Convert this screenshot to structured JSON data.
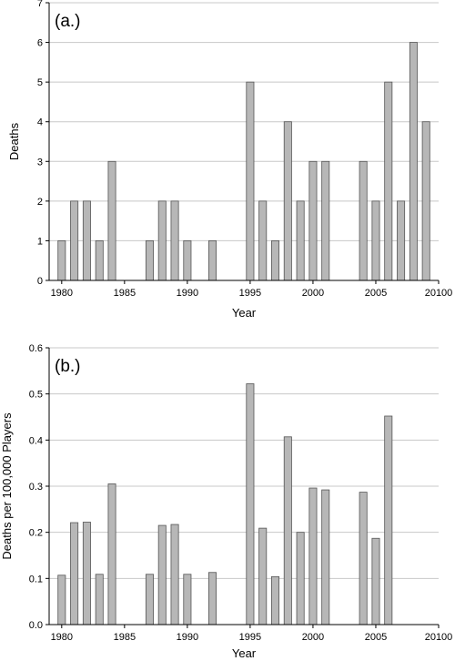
{
  "chart_data": [
    {
      "type": "bar",
      "panel_label": "(a.)",
      "xlabel": "Year",
      "ylabel": "Deaths",
      "xlim": [
        1979,
        2010
      ],
      "ylim": [
        0,
        7
      ],
      "xticks": [
        1980,
        1985,
        1990,
        1995,
        2000,
        2005
      ],
      "xticks_last_label": "20100",
      "yticks": [
        0,
        1,
        2,
        3,
        4,
        5,
        6,
        7
      ],
      "grid": "horizontal",
      "bar_color": "#b7b7b7",
      "x": [
        1980,
        1981,
        1982,
        1983,
        1984,
        1985,
        1986,
        1987,
        1988,
        1989,
        1990,
        1991,
        1992,
        1993,
        1994,
        1995,
        1996,
        1997,
        1998,
        1999,
        2000,
        2001,
        2002,
        2003,
        2004,
        2005,
        2006,
        2007,
        2008,
        2009
      ],
      "values": [
        1,
        2,
        2,
        1,
        3,
        0,
        0,
        1,
        2,
        2,
        1,
        0,
        1,
        0,
        0,
        5,
        2,
        1,
        4,
        2,
        3,
        3,
        0,
        0,
        3,
        2,
        5,
        2,
        6,
        4
      ]
    },
    {
      "type": "bar",
      "panel_label": "(b.)",
      "xlabel": "Year",
      "ylabel": "Deaths per 100,000 Players",
      "xlim": [
        1979,
        2010
      ],
      "ylim": [
        0,
        0.6
      ],
      "xticks": [
        1980,
        1985,
        1990,
        1995,
        2000,
        2005
      ],
      "xticks_last_label": "20100",
      "yticks": [
        "0.0",
        "0.1",
        "0.2",
        "0.3",
        "0.4",
        "0.5",
        "0.6"
      ],
      "grid": "horizontal",
      "bar_color": "#b7b7b7",
      "x": [
        1980,
        1981,
        1982,
        1983,
        1984,
        1985,
        1986,
        1987,
        1988,
        1989,
        1990,
        1991,
        1992,
        1993,
        1994,
        1995,
        1996,
        1997,
        1998,
        1999,
        2000,
        2001,
        2002,
        2003,
        2004,
        2005,
        2006
      ],
      "values": [
        0.107,
        0.221,
        0.222,
        0.109,
        0.305,
        0,
        0,
        0.109,
        0.215,
        0.217,
        0.109,
        0,
        0.113,
        0,
        0,
        0.522,
        0.209,
        0.104,
        0.407,
        0.2,
        0.296,
        0.292,
        0,
        0,
        0.287,
        0.187,
        0.452
      ]
    }
  ]
}
